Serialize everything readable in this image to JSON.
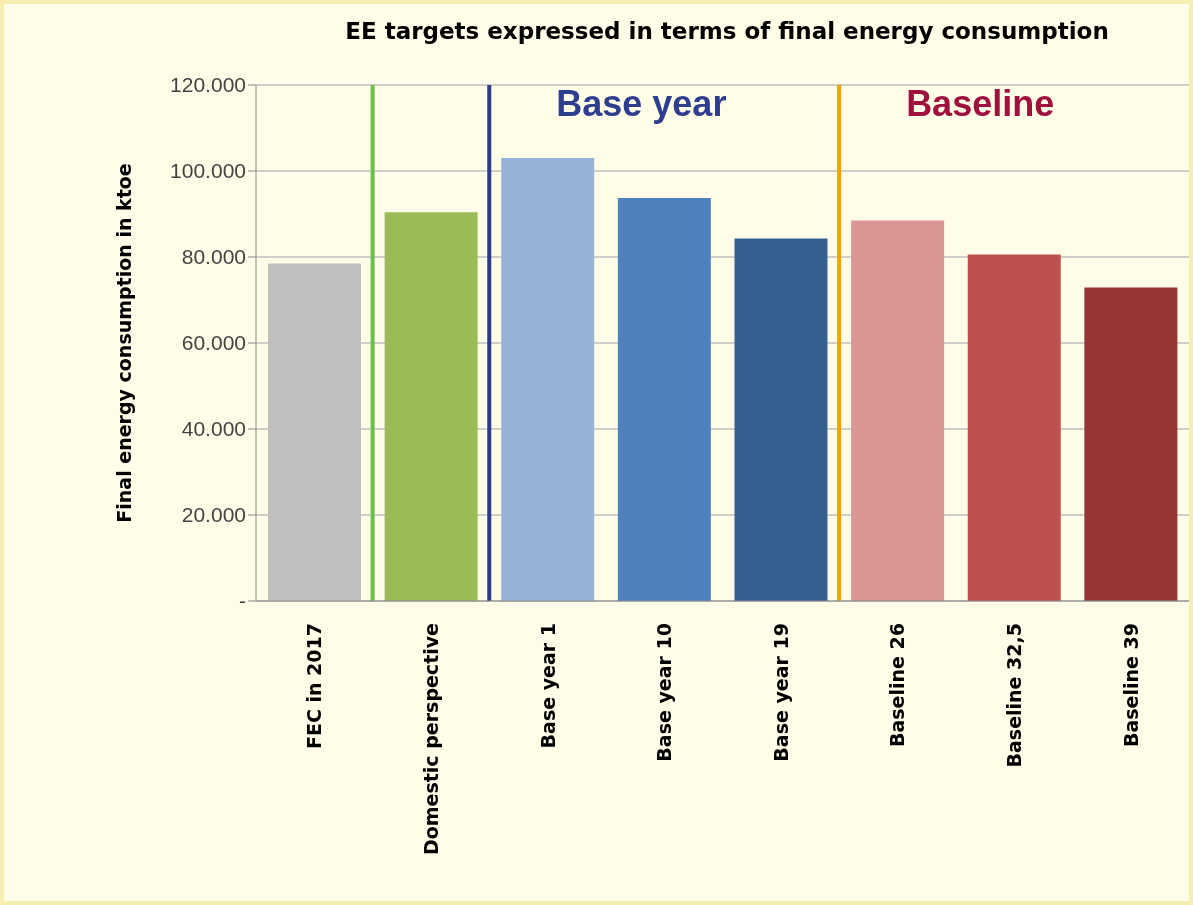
{
  "chart_data": {
    "type": "bar",
    "title": "EE targets expressed in terms of final energy consumption",
    "ylabel": "Final energy consumption in ktoe",
    "categories": [
      "FEC in 2017",
      "Domestic perspective",
      "Base year 1",
      "Base year 10",
      "Base year 19",
      "Baseline 26",
      "Baseline 32,5",
      "Baseline 39"
    ],
    "values": [
      78500,
      90400,
      103000,
      93700,
      84300,
      88500,
      80600,
      72900
    ],
    "colors": [
      "#bfbfbf",
      "#9bbb59",
      "#95b3d7",
      "#4f81bd",
      "#366092",
      "#da9694",
      "#c0504d",
      "#963634"
    ],
    "ylim": [
      0,
      120000
    ],
    "yticks": [
      {
        "value": 0,
        "label": "-"
      },
      {
        "value": 20000,
        "label": "20.000"
      },
      {
        "value": 40000,
        "label": "40.000"
      },
      {
        "value": 60000,
        "label": "60.000"
      },
      {
        "value": 80000,
        "label": "80.000"
      },
      {
        "value": 100000,
        "label": "100.000"
      },
      {
        "value": 120000,
        "label": "120.000"
      }
    ],
    "grid": "y",
    "ref_lines": [
      {
        "axis": "x",
        "value": "Domestic perspective",
        "color": "#6cbf4c"
      },
      {
        "axis": "x",
        "value": "Base year 1",
        "color": "#2e3a8c",
        "label": "Base year"
      },
      {
        "axis": "x",
        "value": "Baseline 26",
        "color": "#f5a200",
        "label": "Baseline"
      }
    ]
  }
}
